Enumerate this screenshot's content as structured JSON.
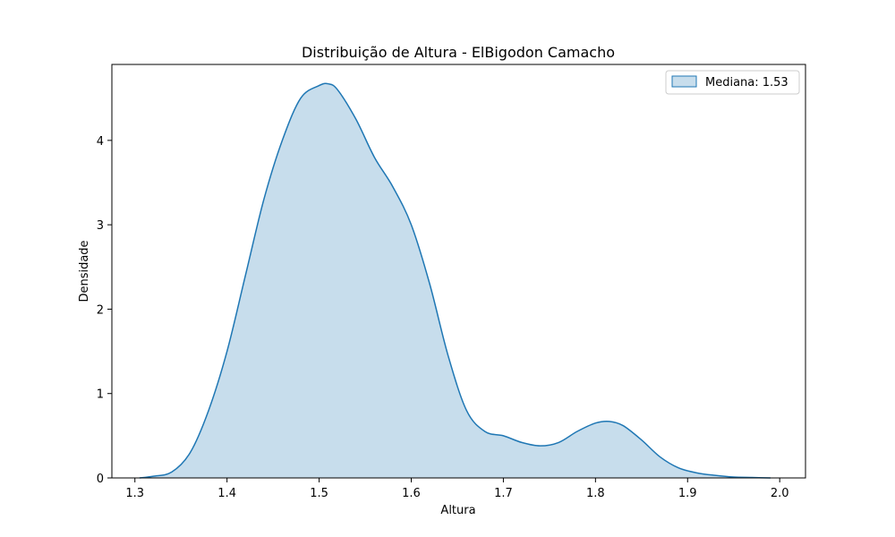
{
  "chart_data": {
    "type": "area",
    "title": "Distribuição de Altura - ElBigodon Camacho",
    "xlabel": "Altura",
    "ylabel": "Densidade",
    "xlim": [
      1.275,
      2.028
    ],
    "ylim": [
      0,
      4.9
    ],
    "x_ticks": [
      1.3,
      1.4,
      1.5,
      1.6,
      1.7,
      1.8,
      1.9,
      2.0
    ],
    "x_tick_labels": [
      "1.3",
      "1.4",
      "1.5",
      "1.6",
      "1.7",
      "1.8",
      "1.9",
      "2.0"
    ],
    "y_ticks": [
      0,
      1,
      2,
      3,
      4
    ],
    "y_tick_labels": [
      "0",
      "1",
      "2",
      "3",
      "4"
    ],
    "grid": false,
    "legend_position": "top-right",
    "series": [
      {
        "name": "Mediana: 1.53",
        "color": "#1f77b4",
        "fill_color": "#1f77b4",
        "fill_opacity": 0.25,
        "x": [
          1.305,
          1.32,
          1.34,
          1.36,
          1.38,
          1.4,
          1.42,
          1.44,
          1.46,
          1.48,
          1.5,
          1.51,
          1.52,
          1.54,
          1.56,
          1.58,
          1.6,
          1.62,
          1.64,
          1.66,
          1.68,
          1.7,
          1.72,
          1.74,
          1.76,
          1.78,
          1.8,
          1.815,
          1.83,
          1.85,
          1.87,
          1.89,
          1.91,
          1.93,
          1.95,
          1.97,
          1.99
        ],
        "y": [
          0.0,
          0.02,
          0.07,
          0.3,
          0.8,
          1.5,
          2.4,
          3.3,
          4.0,
          4.5,
          4.65,
          4.67,
          4.6,
          4.25,
          3.8,
          3.45,
          3.0,
          2.3,
          1.45,
          0.8,
          0.55,
          0.5,
          0.42,
          0.38,
          0.42,
          0.55,
          0.65,
          0.67,
          0.62,
          0.45,
          0.25,
          0.12,
          0.06,
          0.03,
          0.01,
          0.005,
          0.0
        ]
      }
    ],
    "legend_entries": [
      "Mediana: 1.53"
    ]
  }
}
